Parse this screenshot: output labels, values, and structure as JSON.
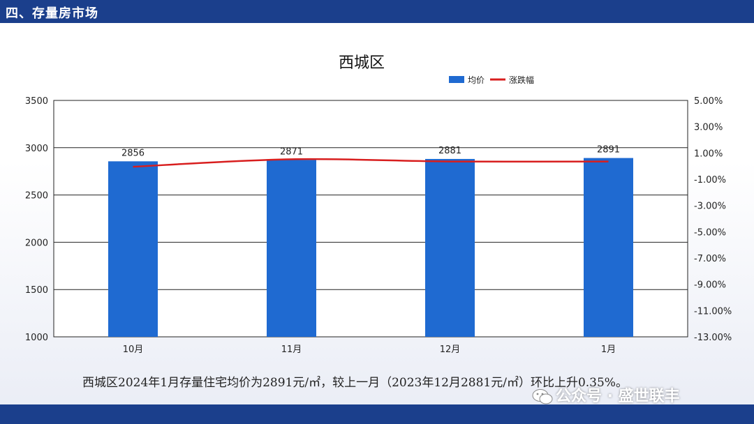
{
  "header": {
    "title": "四、存量房市场"
  },
  "summary_text": "西城区2024年1月存量住宅均价为2891元/㎡，较上一月（2023年12月2881元/㎡）环比上升0.35%。",
  "watermark": {
    "text": "公众号 · 盛世联丰",
    "icon": "wechat-icon"
  },
  "colors": {
    "header_bg": "#1b3f8c",
    "bar": "#1f6ad1",
    "line": "#d81e1e"
  },
  "chart_data": {
    "type": "bar",
    "title": "西城区",
    "categories": [
      "10月",
      "11月",
      "12月",
      "1月"
    ],
    "series": [
      {
        "name": "均价",
        "type": "bar",
        "axis": "left",
        "values": [
          2856,
          2871,
          2881,
          2891
        ],
        "labels": [
          "2856",
          "2871",
          "2881",
          "2891"
        ]
      },
      {
        "name": "涨跌幅",
        "type": "line",
        "axis": "right",
        "values": [
          -0.05,
          0.52,
          0.35,
          0.35
        ]
      }
    ],
    "y_left": {
      "min": 1000,
      "max": 3500,
      "ticks": [
        "1000",
        "1500",
        "2000",
        "2500",
        "3000",
        "3500"
      ]
    },
    "y_right": {
      "min": -13,
      "max": 5,
      "ticks": [
        "5.00%",
        "3.00%",
        "1.00%",
        "-1.00%",
        "-3.00%",
        "-5.00%",
        "-7.00%",
        "-9.00%",
        "-11.00%",
        "-13.00%"
      ]
    },
    "legend_position": "top-right",
    "grid": true
  }
}
